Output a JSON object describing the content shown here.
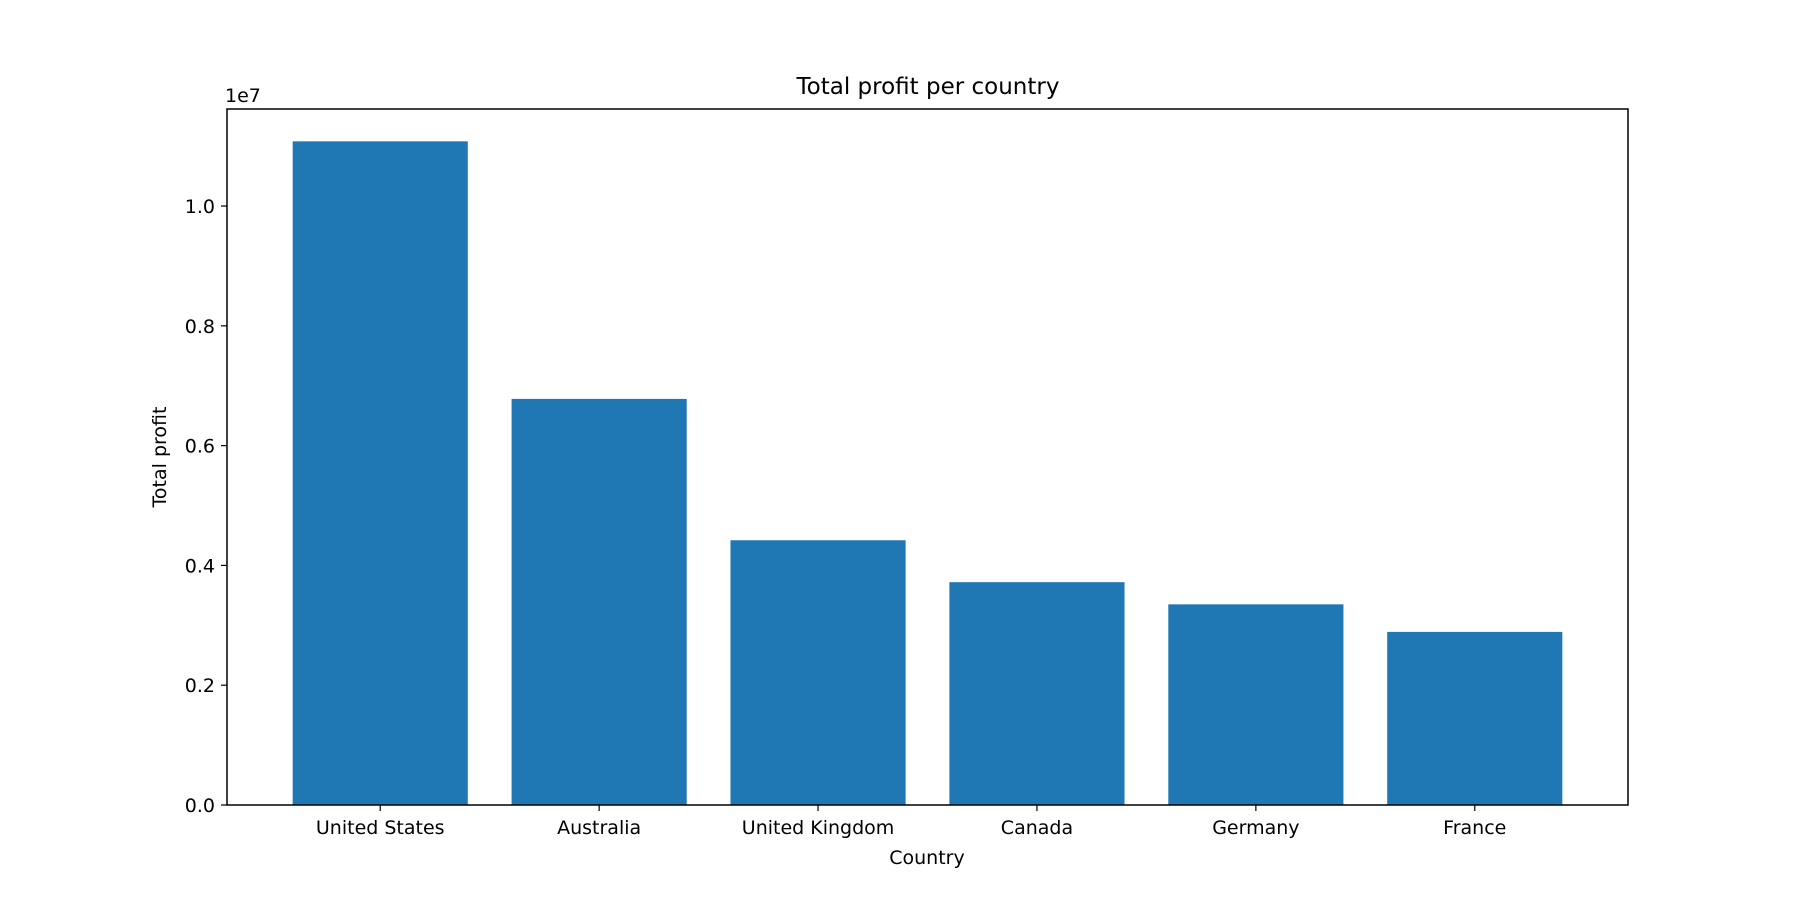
{
  "chart_data": {
    "type": "bar",
    "title": "Total profit per country",
    "xlabel": "Country",
    "ylabel": "Total profit",
    "offset_text": "1e7",
    "categories": [
      "United States",
      "Australia",
      "United Kingdom",
      "Canada",
      "Germany",
      "France"
    ],
    "values": [
      11080000,
      6780000,
      4420000,
      3720000,
      3350000,
      2890000
    ],
    "ylim": [
      0,
      11620000
    ],
    "yticks": [
      0,
      2000000,
      4000000,
      6000000,
      8000000,
      10000000
    ],
    "ytick_labels": [
      "0.0",
      "0.2",
      "0.4",
      "0.6",
      "0.8",
      "1.0"
    ],
    "bar_color": "#1f77b4",
    "grid": false,
    "legend": "none"
  }
}
